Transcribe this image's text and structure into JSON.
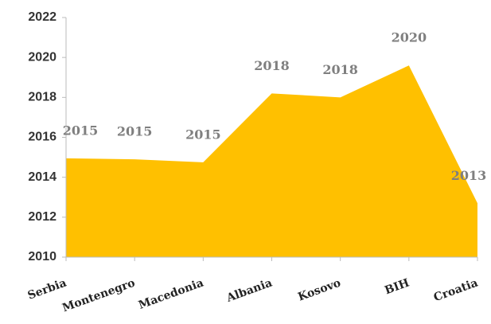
{
  "chart_data": {
    "type": "area",
    "categories": [
      "Serbia",
      "Montenegro",
      "Macedonia",
      "Albania",
      "Kosovo",
      "BIH",
      "Croatia"
    ],
    "values": [
      2014.95,
      2014.9,
      2014.75,
      2018.2,
      2018,
      2019.6,
      2012.7
    ],
    "value_labels": [
      "2015",
      "2015",
      "2015",
      "2018",
      "2018",
      "2020",
      "2013"
    ],
    "color": "#FFC000",
    "ylim": [
      2010,
      2022
    ],
    "yticks": [
      2010,
      2012,
      2014,
      2016,
      2018,
      2020,
      2022
    ],
    "grid": false
  }
}
